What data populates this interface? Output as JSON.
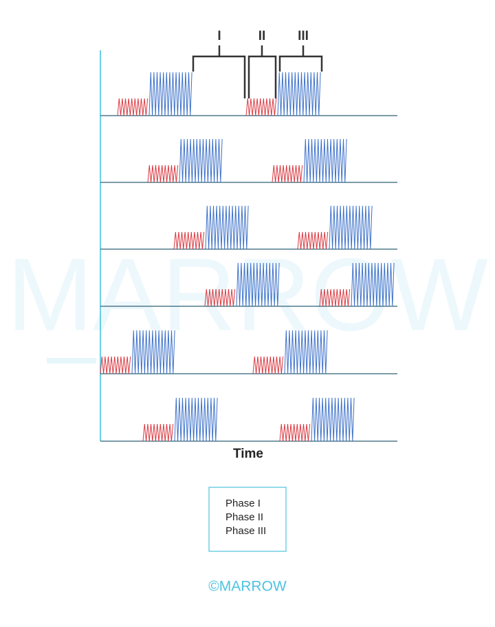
{
  "watermark": "MARROW",
  "phase_labels": [
    "I",
    "II",
    "III"
  ],
  "axis_label": "Time",
  "legend": [
    "Phase I",
    "Phase II",
    "Phase III"
  ],
  "footer": "©MARROW"
}
